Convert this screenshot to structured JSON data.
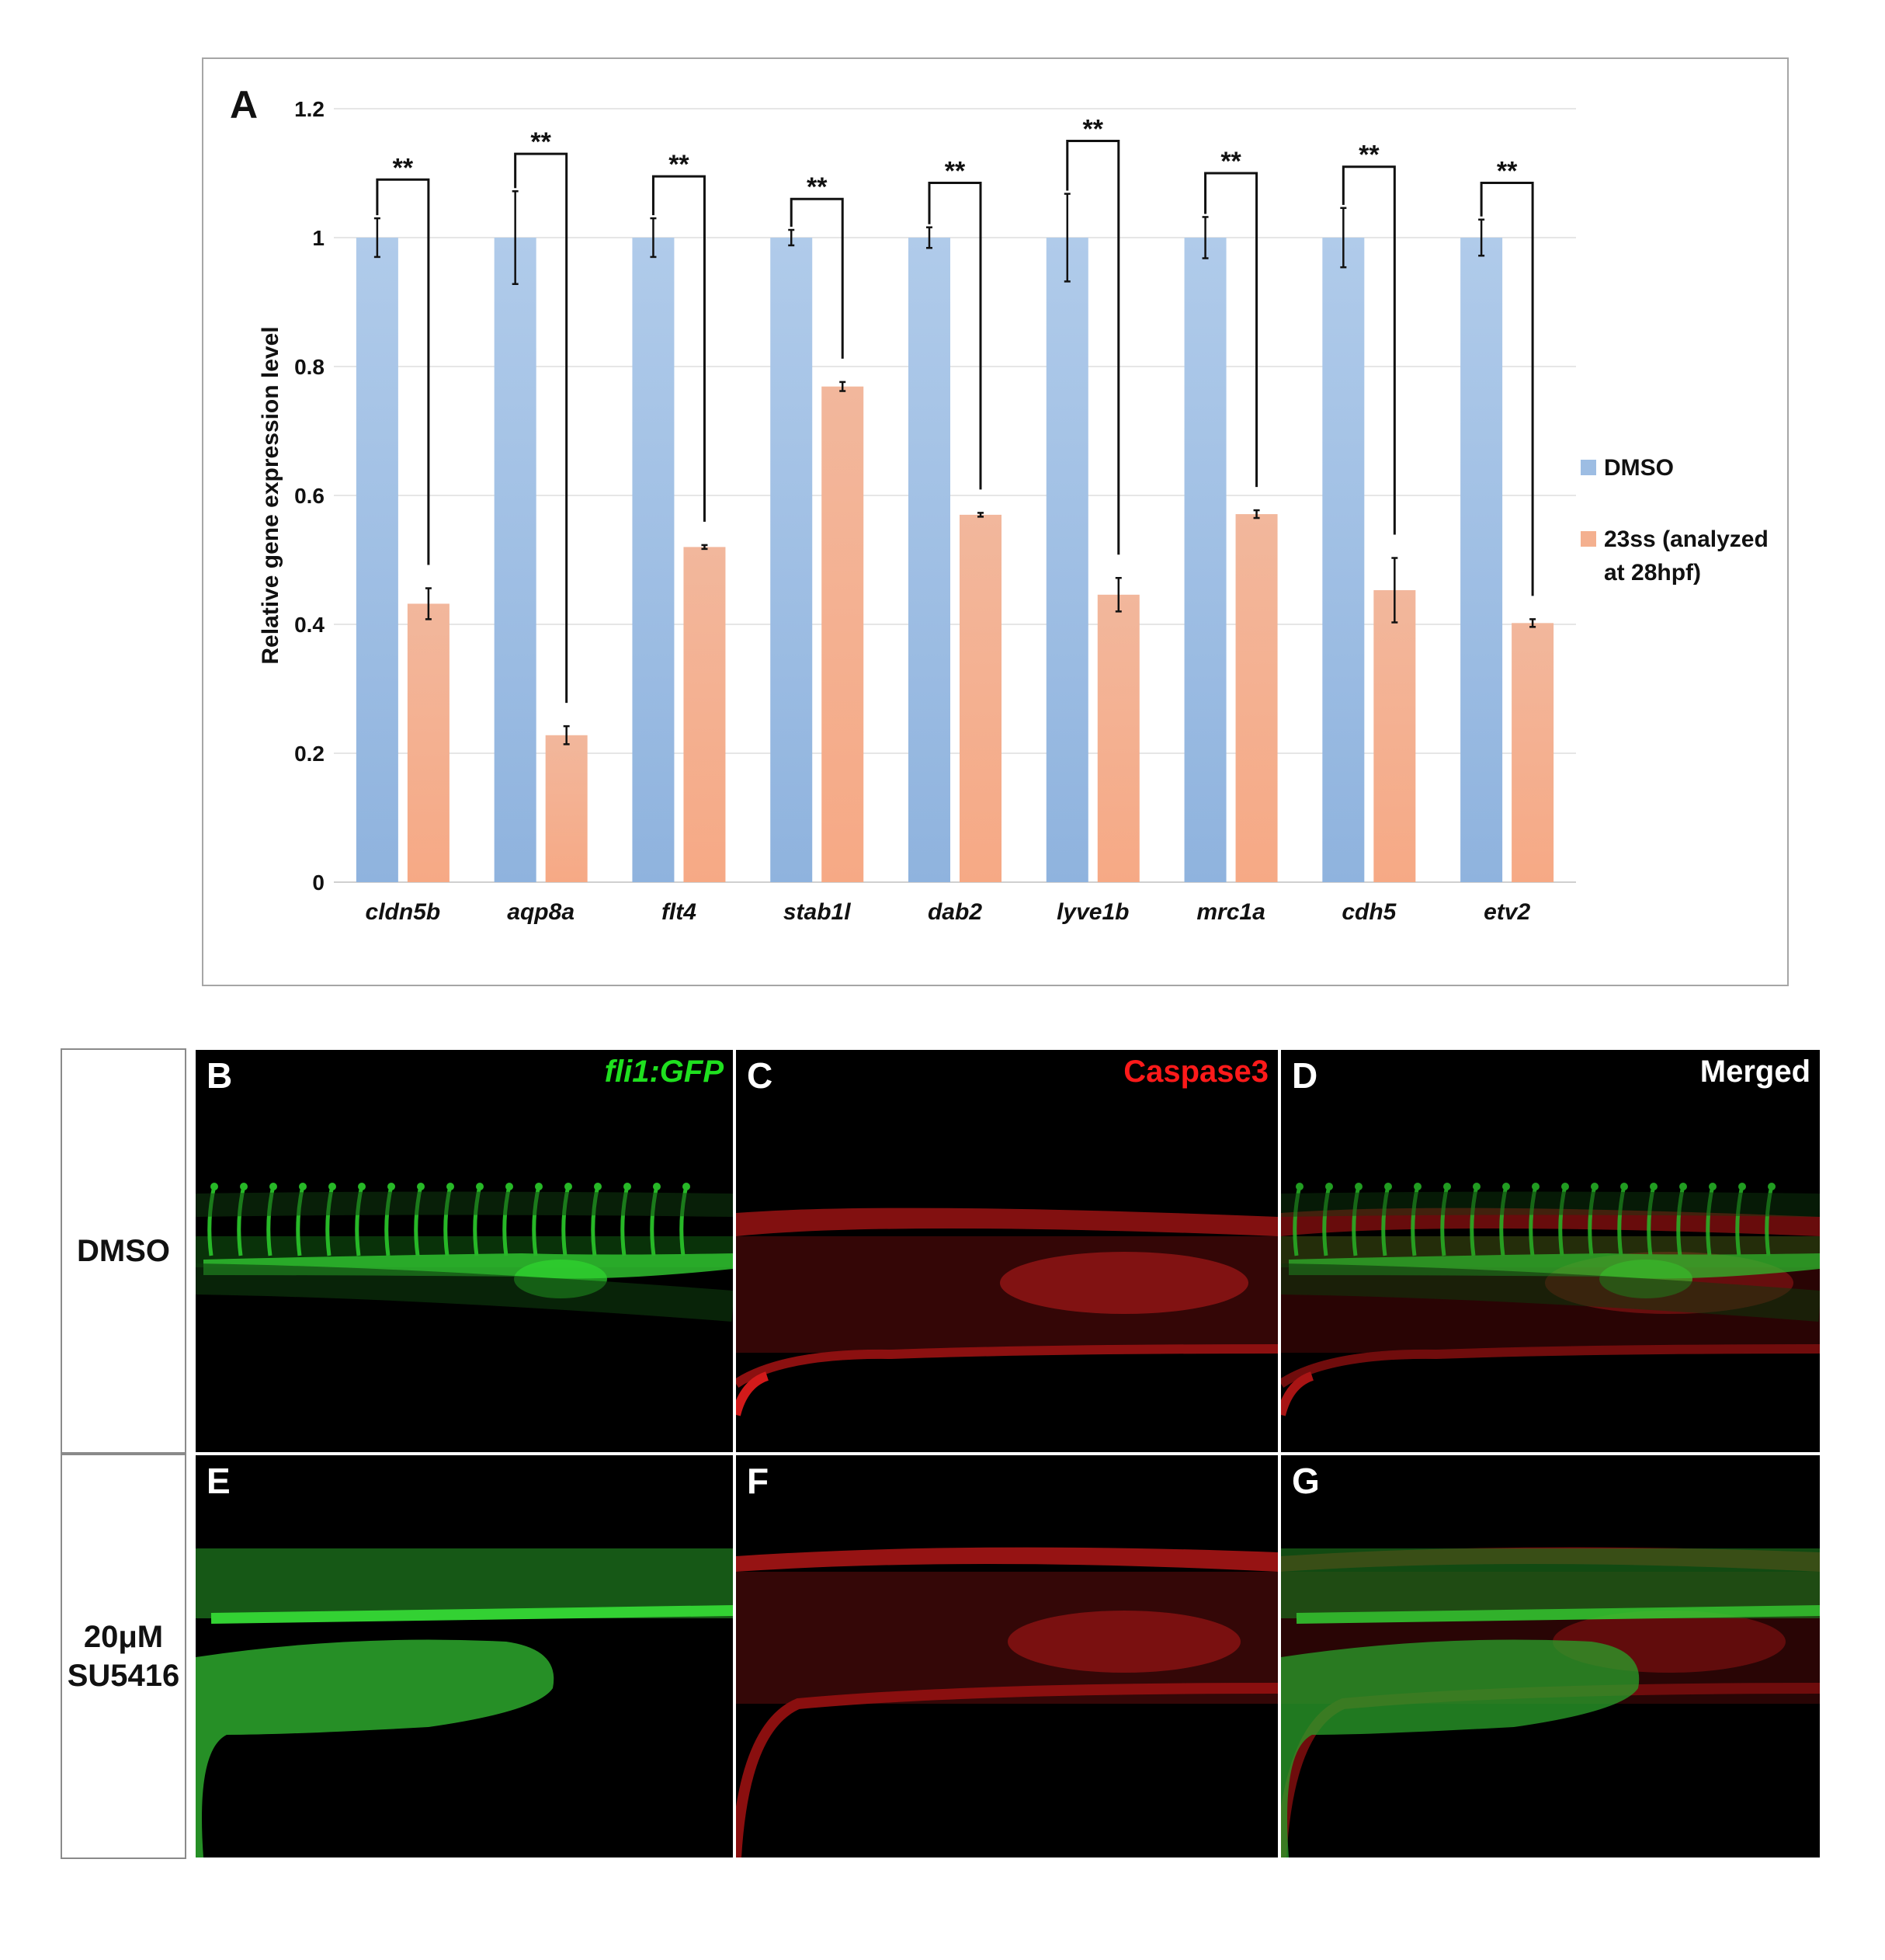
{
  "figure": {
    "panel_A_label": "A",
    "row_labels": {
      "row1": "DMSO",
      "row2_line1": "20μM",
      "row2_line2": "SU5416"
    },
    "micro_panels": [
      {
        "letter": "B",
        "tag": "fli1:GFP",
        "tag_italic": true,
        "tag_color": "#1fe01f",
        "channel": "green",
        "condition": "dmso"
      },
      {
        "letter": "C",
        "tag": "Caspase3",
        "tag_italic": false,
        "tag_color": "#ff1a1a",
        "channel": "red",
        "condition": "dmso"
      },
      {
        "letter": "D",
        "tag": "Merged",
        "tag_italic": false,
        "tag_color": "#ffffff",
        "channel": "merged",
        "condition": "dmso"
      },
      {
        "letter": "E",
        "tag": "",
        "channel": "green",
        "condition": "su5416"
      },
      {
        "letter": "F",
        "tag": "",
        "channel": "red",
        "condition": "su5416"
      },
      {
        "letter": "G",
        "tag": "",
        "channel": "merged",
        "condition": "su5416"
      }
    ]
  },
  "chart_data": {
    "type": "bar",
    "title": "",
    "xlabel": "",
    "ylabel": "Relative gene expression level",
    "ylim": [
      0,
      1.2
    ],
    "yticks": [
      "0",
      "0.2",
      "0.4",
      "0.6",
      "0.8",
      "1",
      "1.2"
    ],
    "categories": [
      "cldn5b",
      "aqp8a",
      "flt4",
      "stab1l",
      "dab2",
      "lyve1b",
      "mrc1a",
      "cdh5",
      "etv2"
    ],
    "series": [
      {
        "name": "DMSO",
        "color": "#9dbde3",
        "values": [
          1,
          1,
          1,
          1,
          1,
          1,
          1,
          1,
          1
        ],
        "errors": [
          0.03,
          0.072,
          0.03,
          0.012,
          0.016,
          0.068,
          0.032,
          0.046,
          0.028
        ]
      },
      {
        "name": "23ss (analyzed at 28hpf)",
        "legend_line1": "23ss (analyzed",
        "legend_line2": "at 28hpf)",
        "color": "#f4b08f",
        "values": [
          0.432,
          0.228,
          0.52,
          0.769,
          0.57,
          0.446,
          0.571,
          0.453,
          0.402
        ],
        "errors": [
          0.024,
          0.014,
          0.003,
          0.007,
          0.003,
          0.026,
          0.006,
          0.05,
          0.006
        ]
      }
    ],
    "significance": {
      "label": "**",
      "bracket_tops": [
        1.09,
        1.13,
        1.095,
        1.06,
        1.085,
        1.15,
        1.1,
        1.11,
        1.085
      ]
    },
    "grid": true,
    "legend_position": "right"
  }
}
